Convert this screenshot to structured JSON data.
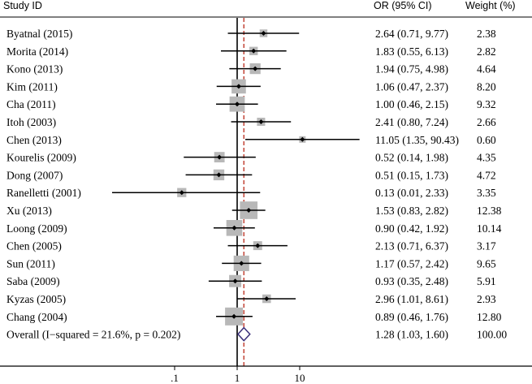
{
  "headers": {
    "study": "Study ID",
    "or": "OR (95% CI)",
    "weight": "Weight (%)"
  },
  "chart_data": {
    "type": "forest",
    "x_scale": "log",
    "xlim": [
      0.01,
      1000
    ],
    "x_ticks": [
      ".1",
      "1",
      "10"
    ],
    "tick_values": [
      0.1,
      1,
      10
    ],
    "null_line": 1,
    "pooled_line": 1.28,
    "studies": [
      {
        "label": "Byatnal (2015)",
        "or": 2.64,
        "lo": 0.71,
        "hi": 9.77,
        "ci_text": "2.64 (0.71, 9.77)",
        "weight": 2.38,
        "weight_text": "2.38"
      },
      {
        "label": "Morita (2014)",
        "or": 1.83,
        "lo": 0.55,
        "hi": 6.13,
        "ci_text": "1.83 (0.55, 6.13)",
        "weight": 2.82,
        "weight_text": "2.82"
      },
      {
        "label": "Kono (2013)",
        "or": 1.94,
        "lo": 0.75,
        "hi": 4.98,
        "ci_text": "1.94 (0.75, 4.98)",
        "weight": 4.64,
        "weight_text": "4.64"
      },
      {
        "label": "Kim (2011)",
        "or": 1.06,
        "lo": 0.47,
        "hi": 2.37,
        "ci_text": "1.06 (0.47, 2.37)",
        "weight": 8.2,
        "weight_text": "8.20"
      },
      {
        "label": "Cha (2011)",
        "or": 1.0,
        "lo": 0.46,
        "hi": 2.15,
        "ci_text": "1.00 (0.46, 2.15)",
        "weight": 9.32,
        "weight_text": "9.32"
      },
      {
        "label": "Itoh (2003)",
        "or": 2.41,
        "lo": 0.8,
        "hi": 7.24,
        "ci_text": "2.41 (0.80, 7.24)",
        "weight": 2.66,
        "weight_text": "2.66"
      },
      {
        "label": "Chen (2013)",
        "or": 11.05,
        "lo": 1.35,
        "hi": 90.43,
        "ci_text": "11.05 (1.35, 90.43)",
        "weight": 0.6,
        "weight_text": "0.60"
      },
      {
        "label": "Kourelis (2009)",
        "or": 0.52,
        "lo": 0.14,
        "hi": 1.98,
        "ci_text": "0.52 (0.14, 1.98)",
        "weight": 4.35,
        "weight_text": "4.35"
      },
      {
        "label": "Dong (2007)",
        "or": 0.51,
        "lo": 0.15,
        "hi": 1.73,
        "ci_text": "0.51 (0.15, 1.73)",
        "weight": 4.72,
        "weight_text": "4.72"
      },
      {
        "label": "Ranelletti (2001)",
        "or": 0.13,
        "lo": 0.01,
        "hi": 2.33,
        "ci_text": "0.13 (0.01, 2.33)",
        "weight": 3.35,
        "weight_text": "3.35"
      },
      {
        "label": "Xu (2013)",
        "or": 1.53,
        "lo": 0.83,
        "hi": 2.82,
        "ci_text": "1.53 (0.83, 2.82)",
        "weight": 12.38,
        "weight_text": "12.38"
      },
      {
        "label": "Loong (2009)",
        "or": 0.9,
        "lo": 0.42,
        "hi": 1.92,
        "ci_text": "0.90 (0.42, 1.92)",
        "weight": 10.14,
        "weight_text": "10.14"
      },
      {
        "label": "Chen (2005)",
        "or": 2.13,
        "lo": 0.71,
        "hi": 6.37,
        "ci_text": "2.13 (0.71, 6.37)",
        "weight": 3.17,
        "weight_text": "3.17"
      },
      {
        "label": "Sun (2011)",
        "or": 1.17,
        "lo": 0.57,
        "hi": 2.42,
        "ci_text": "1.17 (0.57, 2.42)",
        "weight": 9.65,
        "weight_text": "9.65"
      },
      {
        "label": "Saba (2009)",
        "or": 0.93,
        "lo": 0.35,
        "hi": 2.48,
        "ci_text": "0.93 (0.35, 2.48)",
        "weight": 5.91,
        "weight_text": "5.91"
      },
      {
        "label": "Kyzas (2005)",
        "or": 2.96,
        "lo": 1.01,
        "hi": 8.61,
        "ci_text": "2.96 (1.01, 8.61)",
        "weight": 2.93,
        "weight_text": "2.93"
      },
      {
        "label": "Chang (2004)",
        "or": 0.89,
        "lo": 0.46,
        "hi": 1.76,
        "ci_text": "0.89 (0.46, 1.76)",
        "weight": 12.8,
        "weight_text": "12.80"
      }
    ],
    "overall": {
      "label": "Overall  (I−squared = 21.6%, p = 0.202)",
      "or": 1.28,
      "lo": 1.03,
      "hi": 1.6,
      "ci_text": "1.28 (1.03, 1.60)",
      "weight_text": "100.00"
    },
    "colors": {
      "box": "#b8b8b8",
      "ci": "#000000",
      "diamond": "#3a2f7a",
      "pooled_line": "#c0392b"
    }
  }
}
